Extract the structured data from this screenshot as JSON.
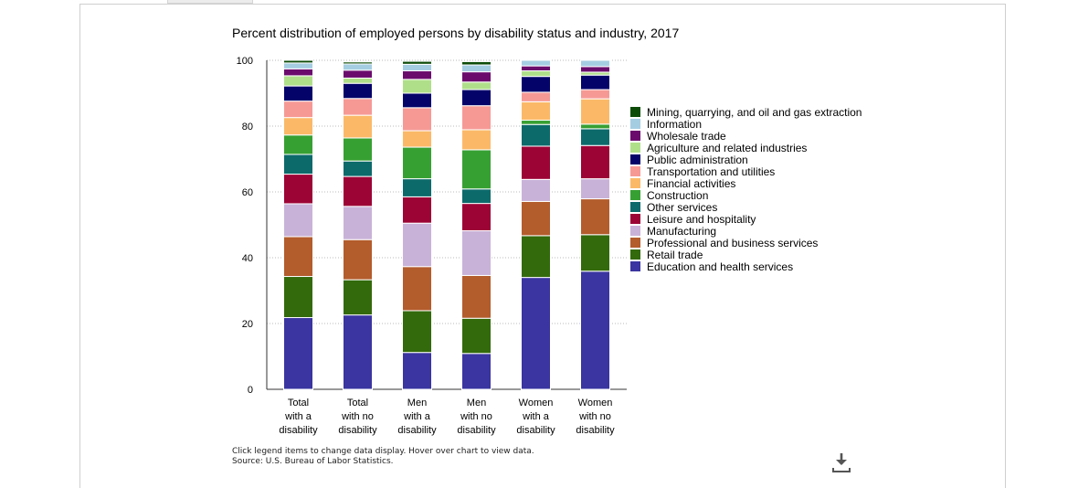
{
  "chart_data": {
    "type": "bar",
    "stacked": true,
    "title": "Percent distribution of employed persons by disability status and industry, 2017",
    "ylim": [
      0,
      100
    ],
    "yticks": [
      0,
      20,
      40,
      60,
      80,
      100
    ],
    "grid": true,
    "legend_position": "right",
    "categories": [
      [
        "Total",
        "with a",
        "disability"
      ],
      [
        "Total",
        "with no",
        "disability"
      ],
      [
        "Men",
        "with a",
        "disability"
      ],
      [
        "Men",
        "with no",
        "disability"
      ],
      [
        "Women",
        "with a",
        "disability"
      ],
      [
        "Women",
        "with no",
        "disability"
      ]
    ],
    "series": [
      {
        "name": "Education and health services",
        "color": "#3a35a0",
        "values": [
          21.8,
          22.6,
          11.2,
          10.9,
          34.0,
          35.9
        ]
      },
      {
        "name": "Retail trade",
        "color": "#336a0b",
        "values": [
          12.5,
          10.7,
          12.7,
          10.7,
          12.7,
          11.1
        ]
      },
      {
        "name": "Professional and business services",
        "color": "#b35c2c",
        "values": [
          12.1,
          12.2,
          13.4,
          13.0,
          10.4,
          10.9
        ]
      },
      {
        "name": "Manufacturing",
        "color": "#c9b2d8",
        "values": [
          10.0,
          10.1,
          13.2,
          13.6,
          6.7,
          6.1
        ]
      },
      {
        "name": "Leisure and hospitality",
        "color": "#9c0436",
        "values": [
          9.0,
          9.1,
          8.0,
          8.3,
          10.1,
          10.1
        ]
      },
      {
        "name": "Other services",
        "color": "#0c6a6b",
        "values": [
          6.0,
          4.7,
          5.5,
          4.4,
          6.6,
          5.1
        ]
      },
      {
        "name": "Construction",
        "color": "#37a032",
        "values": [
          5.9,
          7.0,
          9.6,
          11.9,
          1.3,
          1.4
        ]
      },
      {
        "name": "Financial activities",
        "color": "#fbb968",
        "values": [
          5.3,
          6.9,
          5.0,
          6.1,
          5.6,
          7.7
        ]
      },
      {
        "name": "Transportation and utilities",
        "color": "#f69995",
        "values": [
          5.0,
          5.1,
          7.0,
          7.3,
          2.9,
          2.8
        ]
      },
      {
        "name": "Public administration",
        "color": "#03036a",
        "values": [
          4.6,
          4.6,
          4.4,
          4.9,
          4.8,
          4.4
        ]
      },
      {
        "name": "Agriculture and related industries",
        "color": "#b0df8a",
        "values": [
          3.1,
          1.6,
          4.2,
          2.3,
          1.7,
          0.9
        ]
      },
      {
        "name": "Wholesale trade",
        "color": "#6b0c6d",
        "values": [
          2.1,
          2.4,
          2.6,
          3.1,
          1.5,
          1.7
        ]
      },
      {
        "name": "Information",
        "color": "#a5cde2",
        "values": [
          1.8,
          1.9,
          2.0,
          2.1,
          1.7,
          1.9
        ]
      },
      {
        "name": "Mining, quarrying, and oil and gas extraction",
        "color": "#0d4c08",
        "values": [
          0.8,
          0.6,
          0.9,
          1.0,
          0.0,
          0.0
        ]
      }
    ]
  },
  "footer": {
    "note_line1": "Click legend items to change data display. Hover over chart to view data.",
    "note_line2": "Source: U.S. Bureau of Labor Statistics."
  },
  "icons": {
    "download": "download-icon"
  }
}
